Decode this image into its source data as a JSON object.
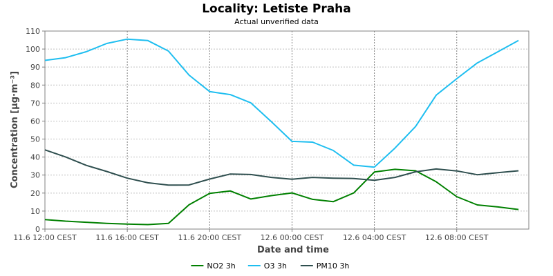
{
  "chart_data": {
    "type": "line",
    "title": "Locality: Letiste Praha",
    "subtitle": "Actual unverified data",
    "xlabel": "Date and time",
    "ylabel": "Concentration [µg·m⁻³]",
    "ylim": [
      0,
      110
    ],
    "yticks": [
      0,
      10,
      20,
      30,
      40,
      50,
      60,
      70,
      80,
      90,
      100,
      110
    ],
    "xlim": [
      0,
      23.5
    ],
    "xticks": [
      {
        "label": "11.6 12:00 CEST",
        "x": 0
      },
      {
        "label": "11.6 16:00 CEST",
        "x": 4
      },
      {
        "label": "11.6 20:00 CEST",
        "x": 8
      },
      {
        "label": "12.6 00:00 CEST",
        "x": 12
      },
      {
        "label": "12.6 04:00 CEST",
        "x": 16
      },
      {
        "label": "12.6 08:00 CEST",
        "x": 20
      }
    ],
    "x": [
      0,
      1,
      2,
      3,
      4,
      5,
      6,
      7,
      8,
      9,
      10,
      11,
      12,
      13,
      14,
      15,
      16,
      17,
      18,
      19,
      20,
      21,
      22,
      23
    ],
    "grid": true,
    "legend_position": "bottom",
    "series": [
      {
        "name": "NO2 3h",
        "color": "#008000",
        "values": [
          5.3,
          4.4,
          3.8,
          3.2,
          2.8,
          2.5,
          3.2,
          13.5,
          19.8,
          21.2,
          16.7,
          18.6,
          20.1,
          16.5,
          15.2,
          20.1,
          31.7,
          33.2,
          32.4,
          26.3,
          18.0,
          13.4,
          12.3,
          10.9
        ]
      },
      {
        "name": "O3 3h",
        "color": "#1ebef0",
        "values": [
          93.7,
          95.2,
          98.5,
          103.1,
          105.5,
          104.7,
          98.9,
          85.5,
          76.4,
          74.7,
          70.1,
          59.6,
          48.7,
          48.3,
          43.7,
          35.5,
          34.4,
          45.0,
          57.0,
          74.4,
          83.5,
          92.3,
          98.5,
          104.8
        ]
      },
      {
        "name": "PM10 3h",
        "color": "#2f4f4f",
        "values": [
          44.0,
          40.1,
          35.4,
          32.0,
          28.3,
          25.7,
          24.4,
          24.5,
          27.8,
          30.6,
          30.3,
          28.7,
          27.7,
          28.7,
          28.3,
          28.1,
          27.1,
          28.7,
          31.8,
          33.4,
          32.3,
          30.2,
          31.3,
          32.4
        ]
      }
    ]
  }
}
